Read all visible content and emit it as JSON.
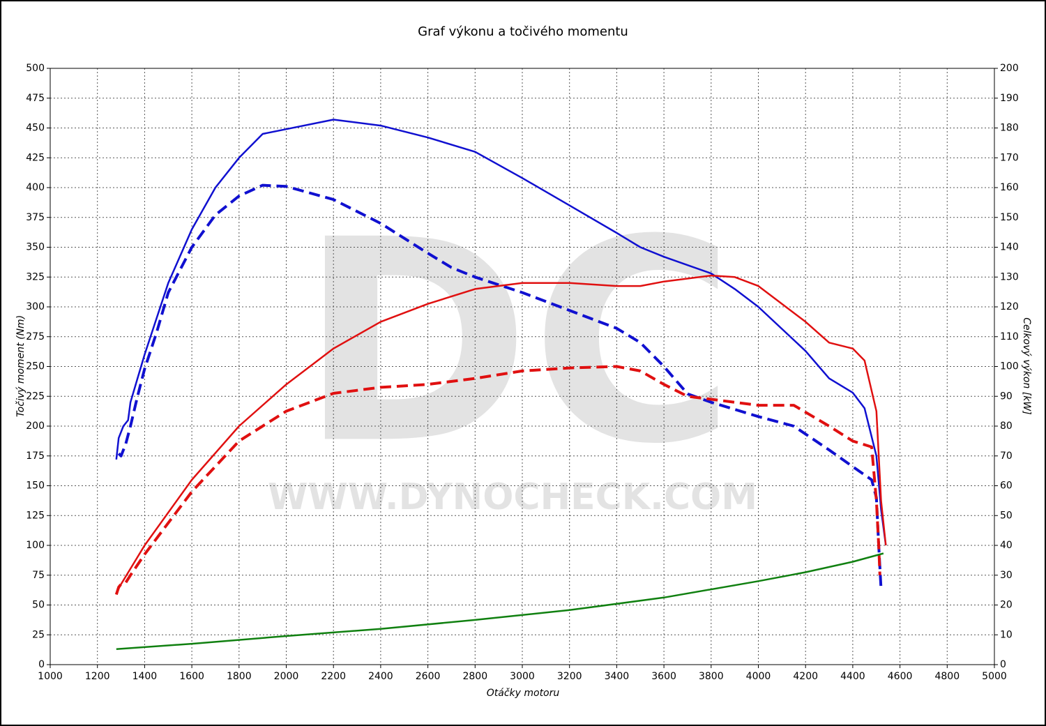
{
  "chart_data": {
    "type": "line",
    "title": "Graf výkonu a točivého momentu",
    "xlabel": "Otáčky motoru",
    "ylabel": "Točivý moment (Nm)",
    "y2label": "Celkový výkon [kW]",
    "watermark": "DC",
    "watermark_url": "WWW.DYNOCHECK.COM",
    "xlim": [
      1000,
      5000
    ],
    "xticks": [
      1000,
      1200,
      1400,
      1600,
      1800,
      2000,
      2200,
      2400,
      2600,
      2800,
      3000,
      3200,
      3400,
      3600,
      3800,
      4000,
      4200,
      4400,
      4600,
      4800,
      5000
    ],
    "ylim": [
      0,
      500
    ],
    "yticks": [
      0,
      25,
      50,
      75,
      100,
      125,
      150,
      175,
      200,
      225,
      250,
      275,
      300,
      325,
      350,
      375,
      400,
      425,
      450,
      475,
      500
    ],
    "y2lim": [
      0,
      200
    ],
    "y2ticks": [
      0,
      10,
      20,
      30,
      40,
      50,
      60,
      70,
      80,
      90,
      100,
      110,
      120,
      130,
      140,
      150,
      160,
      170,
      180,
      190,
      200
    ],
    "grid": true,
    "series": [
      {
        "color": "#1010d0",
        "dashed": false,
        "axis": "y",
        "x": [
          1280,
          1290,
          1310,
          1330,
          1340,
          1370,
          1400,
          1450,
          1500,
          1600,
          1700,
          1800,
          1900,
          2000,
          2200,
          2400,
          2600,
          2800,
          3000,
          3200,
          3400,
          3500,
          3600,
          3800,
          3900,
          4000,
          4200,
          4300,
          4400,
          4450,
          4500,
          4520,
          4540
        ],
        "values": [
          172,
          190,
          200,
          205,
          220,
          240,
          260,
          290,
          320,
          365,
          400,
          425,
          445,
          449,
          457,
          452,
          442,
          430,
          408,
          385,
          362,
          350,
          342,
          328,
          315,
          300,
          263,
          240,
          228,
          215,
          175,
          130,
          100
        ]
      },
      {
        "color": "#1010d0",
        "dashed": true,
        "axis": "y",
        "x": [
          1290,
          1300,
          1320,
          1340,
          1370,
          1400,
          1450,
          1500,
          1600,
          1700,
          1800,
          1900,
          2000,
          2200,
          2400,
          2600,
          2700,
          2800,
          3000,
          3200,
          3400,
          3500,
          3600,
          3700,
          3800,
          4000,
          4150,
          4300,
          4400,
          4480,
          4500,
          4510,
          4520
        ],
        "values": [
          177,
          175,
          185,
          200,
          225,
          248,
          278,
          312,
          350,
          377,
          393,
          402,
          401,
          390,
          370,
          345,
          333,
          325,
          312,
          297,
          282,
          270,
          250,
          227,
          220,
          208,
          200,
          180,
          166,
          155,
          140,
          100,
          63
        ]
      },
      {
        "color": "#e01010",
        "dashed": false,
        "axis": "y2",
        "x": [
          1280,
          1300,
          1400,
          1600,
          1800,
          2000,
          2200,
          2400,
          2600,
          2800,
          3000,
          3200,
          3400,
          3500,
          3600,
          3800,
          3900,
          4000,
          4200,
          4300,
          4400,
          4450,
          4500,
          4520,
          4540
        ],
        "values": [
          24,
          27,
          40,
          62,
          80,
          94,
          106,
          115,
          121,
          126,
          128,
          128,
          127,
          127,
          128.5,
          130.5,
          130,
          127,
          115,
          108,
          106,
          102,
          85,
          55,
          40
        ]
      },
      {
        "color": "#e01010",
        "dashed": true,
        "axis": "y2",
        "x": [
          1280,
          1290,
          1300,
          1320,
          1340,
          1400,
          1600,
          1800,
          2000,
          2200,
          2400,
          2600,
          2800,
          3000,
          3200,
          3400,
          3500,
          3600,
          3700,
          3800,
          4000,
          4150,
          4300,
          4400,
          4480,
          4500,
          4510,
          4515
        ],
        "values": [
          23.5,
          26,
          27,
          27.5,
          30,
          37,
          58,
          75,
          85,
          91,
          93,
          94,
          96,
          98.5,
          99.5,
          100,
          98.5,
          94,
          90,
          89,
          87,
          87,
          80,
          75,
          73,
          55,
          40,
          30
        ]
      },
      {
        "color": "#108010",
        "dashed": false,
        "axis": "y2",
        "x": [
          1280,
          1600,
          2000,
          2400,
          2800,
          3200,
          3600,
          4000,
          4200,
          4400,
          4530
        ],
        "values": [
          5.2,
          7,
          9.6,
          12,
          15,
          18.3,
          22.5,
          28,
          31,
          34.5,
          37.3
        ]
      }
    ]
  }
}
